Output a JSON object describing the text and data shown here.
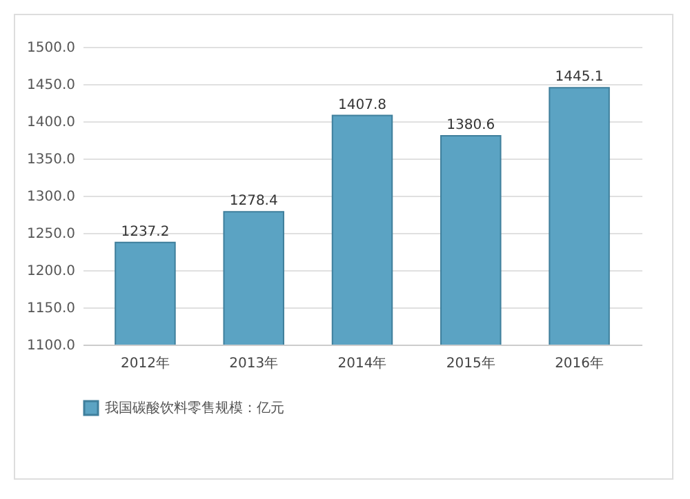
{
  "chart_data": {
    "type": "bar",
    "categories": [
      "2012年",
      "2013年",
      "2014年",
      "2015年",
      "2016年"
    ],
    "series": [
      {
        "name": "我国碳酸饮料零售规模：亿元",
        "color": "#5ba3c3",
        "values": [
          1237.2,
          1278.4,
          1407.8,
          1380.6,
          1445.1
        ]
      }
    ],
    "ylim": [
      1100,
      1500
    ],
    "yticks": [
      {
        "value": 1100,
        "label": "1100.0"
      },
      {
        "value": 1150,
        "label": "1150.0"
      },
      {
        "value": 1200,
        "label": "1200.0"
      },
      {
        "value": 1250,
        "label": "1250.0"
      },
      {
        "value": 1300,
        "label": "1300.0"
      },
      {
        "value": 1350,
        "label": "1350.0"
      },
      {
        "value": 1400,
        "label": "1400.0"
      },
      {
        "value": 1450,
        "label": "1450.0"
      },
      {
        "value": 1500,
        "label": "1500.0"
      }
    ],
    "data_labels": true,
    "grid": "y",
    "legend": "bottom"
  }
}
